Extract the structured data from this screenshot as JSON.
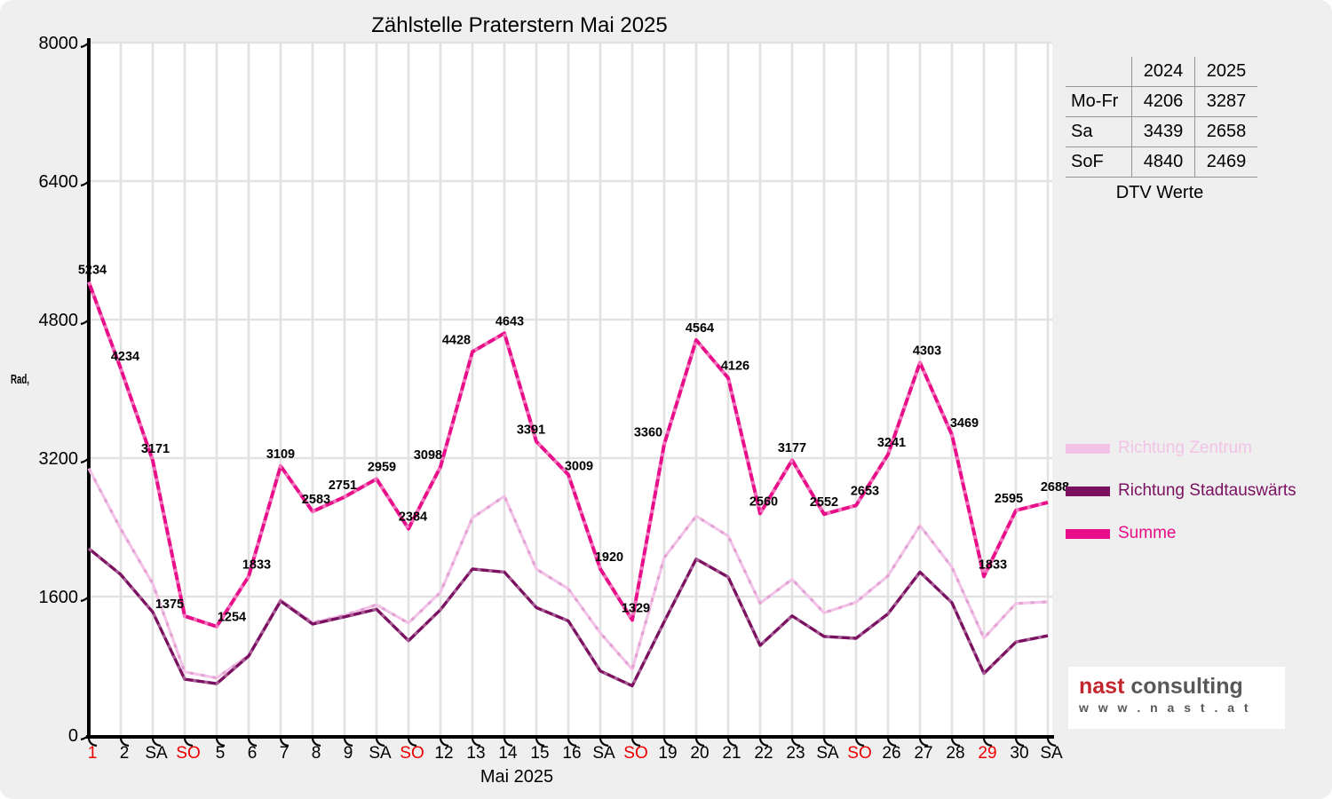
{
  "title": "Zählstelle Praterstern Mai 2025",
  "colors": {
    "background": "#efefef",
    "plot_bg": "#ffffff",
    "grid": "#e2e2e2",
    "axis": "#000000",
    "label_text": "#000000",
    "holiday_red": "#ee0000",
    "zentrum": "#f2c3e7",
    "zentrum_dash": "#e2a0d3",
    "stadtauswaerts": "#7b1060",
    "stadtauswaerts_dash": "#a85b95",
    "summe": "#e80d88",
    "summe_dash": "#f473bd"
  },
  "chart_data": {
    "type": "line",
    "title": "Zählstelle Praterstern Mai 2025",
    "xlabel": "Mai 2025",
    "ylabel": "Rad",
    "ylim": [
      0,
      8000
    ],
    "yticks": [
      0,
      1600,
      3200,
      4800,
      6400,
      8000
    ],
    "grid": true,
    "legend_position": "right",
    "categories": [
      "1",
      "2",
      "SA",
      "SO",
      "5",
      "6",
      "7",
      "8",
      "9",
      "SA",
      "SO",
      "12",
      "13",
      "14",
      "15",
      "16",
      "SA",
      "SO",
      "19",
      "20",
      "21",
      "22",
      "23",
      "SA",
      "SO",
      "26",
      "27",
      "28",
      "29",
      "30",
      "SA"
    ],
    "holiday_indices": [
      0,
      3,
      10,
      17,
      24,
      28
    ],
    "series": [
      {
        "name": "Richtung Zentrum",
        "color": "#f2c3e7",
        "dash_color": "#e2a0d3",
        "labeled": false,
        "values": [
          3080,
          2380,
          1750,
          730,
          660,
          920,
          1560,
          1300,
          1385,
          1505,
          1294,
          1650,
          2510,
          2760,
          1918,
          1690,
          1180,
          760,
          2050,
          2530,
          2300,
          1524,
          1800,
          1413,
          1535,
          1840,
          2420,
          1940,
          1120,
          1520,
          1540
        ]
      },
      {
        "name": "Richtung Stadtauswärts",
        "color": "#7b1060",
        "dash_color": "#a85b95",
        "labeled": false,
        "values": [
          2154,
          1854,
          1421,
          645,
          594,
          913,
          1549,
          1283,
          1366,
          1454,
          1090,
          1448,
          1918,
          1883,
          1473,
          1319,
          740,
          569,
          1310,
          2034,
          1826,
          1036,
          1377,
          1139,
          1118,
          1401,
          1883,
          1529,
          713,
          1075,
          1148
        ]
      },
      {
        "name": "Summe",
        "color": "#e80d88",
        "dash_color": "#f473bd",
        "labeled": true,
        "values": [
          5234,
          4234,
          3171,
          1375,
          1254,
          1833,
          3109,
          2583,
          2751,
          2959,
          2384,
          3098,
          4428,
          4643,
          3391,
          3009,
          1920,
          1329,
          3360,
          4564,
          4126,
          2560,
          3177,
          2552,
          2653,
          3241,
          4303,
          3469,
          1833,
          2595,
          2688
        ]
      }
    ]
  },
  "legend": {
    "items": [
      {
        "label": "Richtung Zentrum",
        "color": "#f2c3e7"
      },
      {
        "label": "Richtung Stadtauswärts",
        "color": "#7b1060"
      },
      {
        "label": "Summe",
        "color": "#e80d88"
      }
    ]
  },
  "table": {
    "headers": [
      "",
      "2024",
      "2025"
    ],
    "rows": [
      [
        "Mo-Fr",
        "4206",
        "3287"
      ],
      [
        "Sa",
        "3439",
        "2658"
      ],
      [
        "SoF",
        "4840",
        "2469"
      ]
    ],
    "caption": "DTV Werte"
  },
  "logo": {
    "brand": "nast",
    "suffix": "consulting",
    "url": "w w w . n a s t . a t"
  }
}
